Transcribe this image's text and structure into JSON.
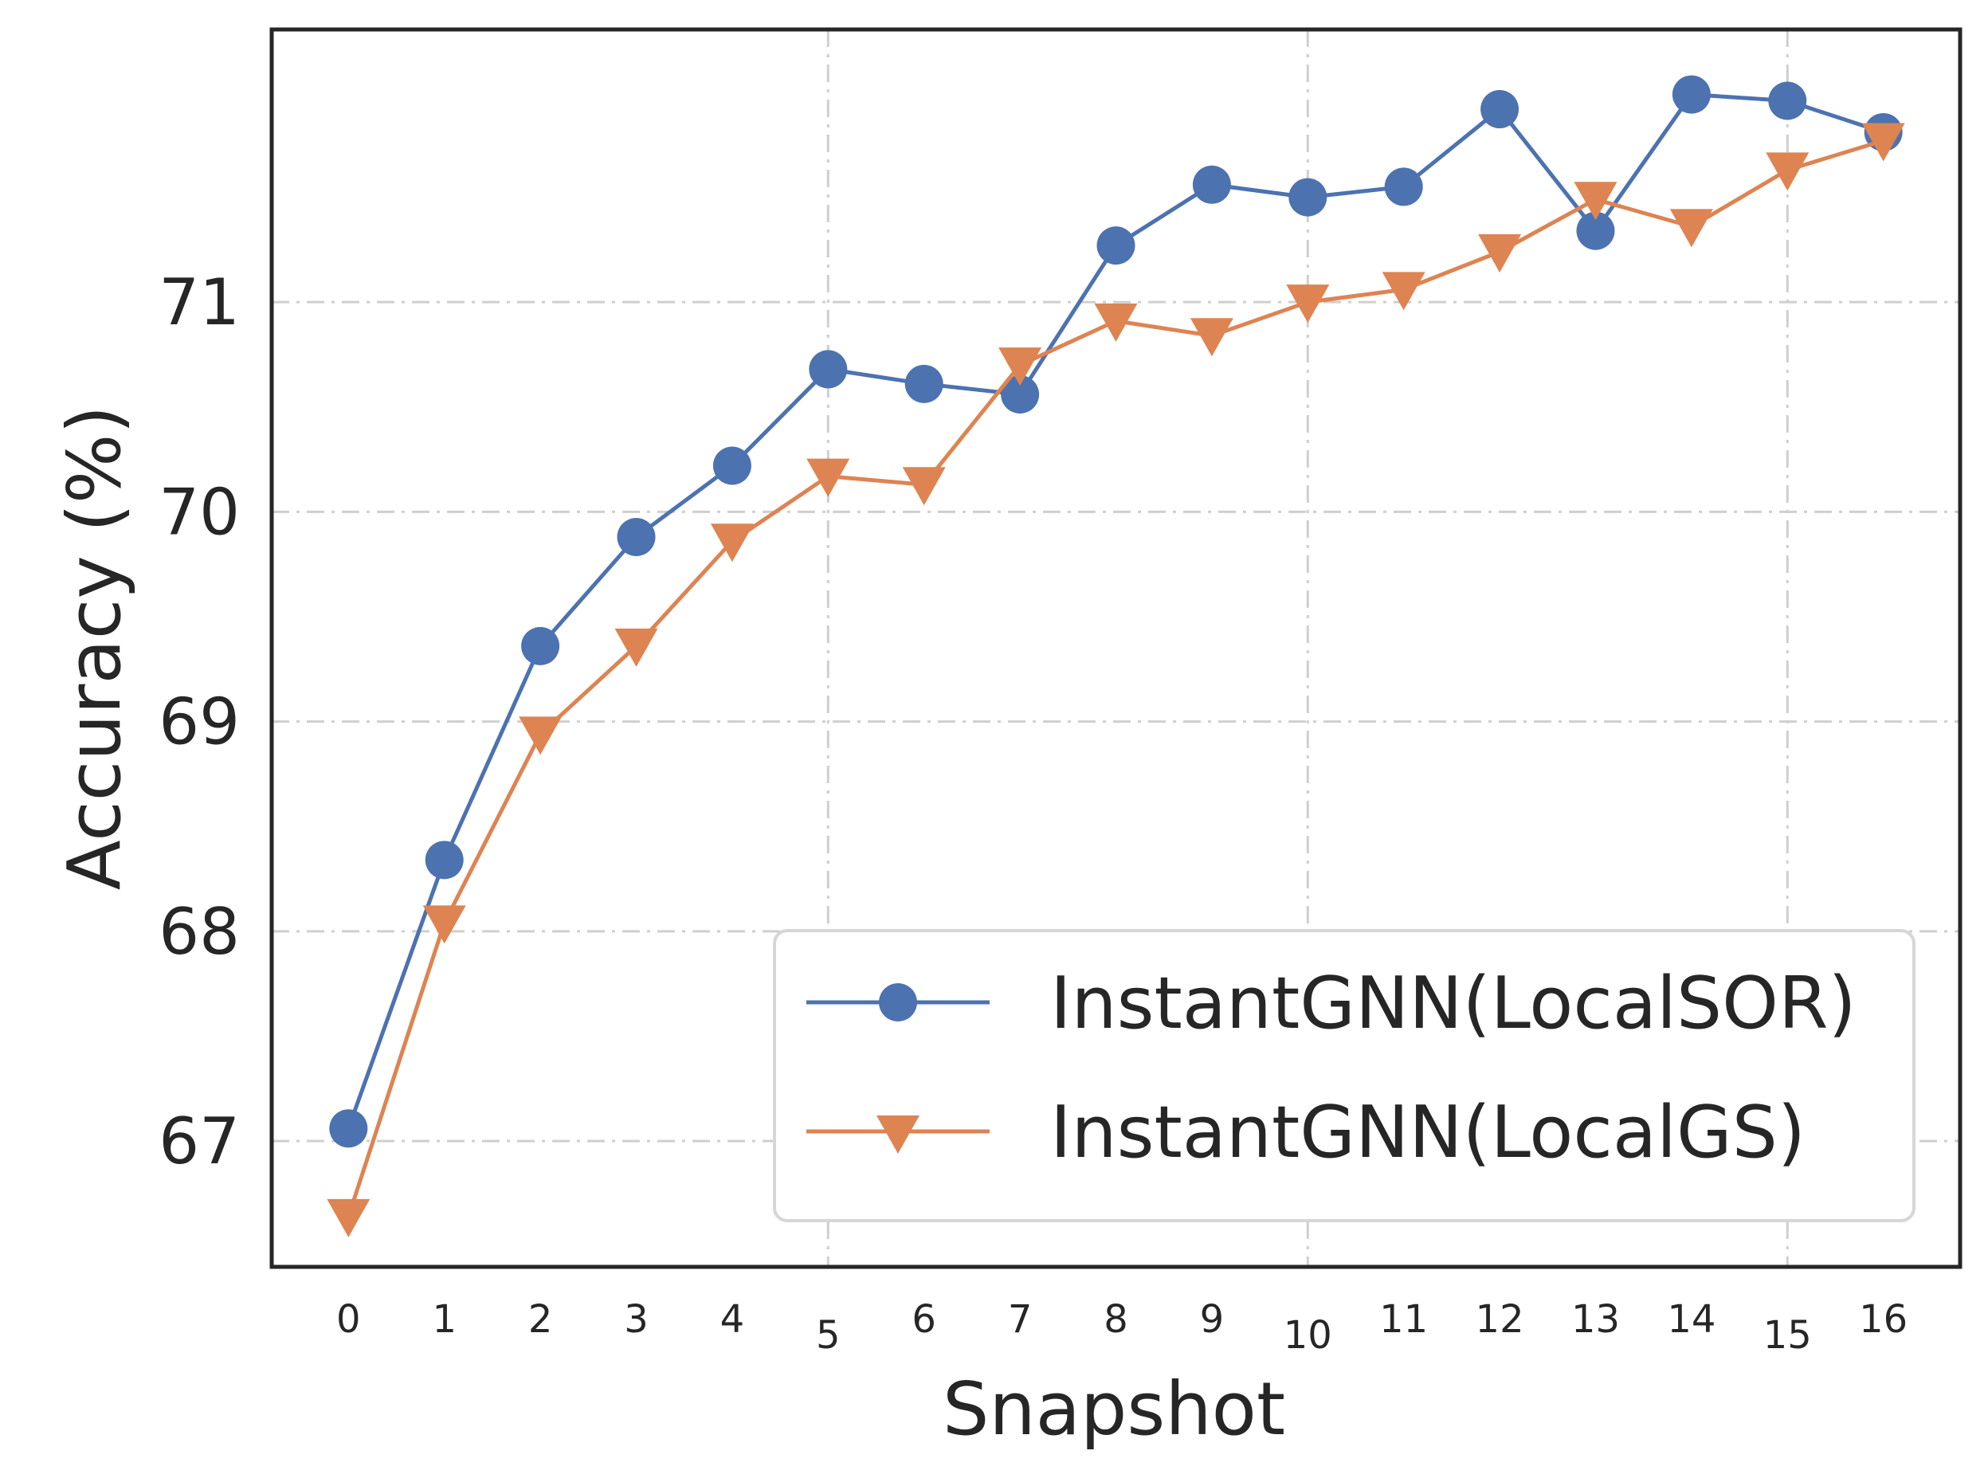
{
  "chart_data": {
    "type": "line",
    "xlabel": "Snapshot",
    "ylabel": "Accuracy (%)",
    "x": [
      0,
      1,
      2,
      3,
      4,
      5,
      6,
      7,
      8,
      9,
      10,
      11,
      12,
      13,
      14,
      15,
      16
    ],
    "xticks": [
      "0",
      "1",
      "2",
      "3",
      "4",
      "5",
      "6",
      "7",
      "8",
      "9",
      "10",
      "11",
      "12",
      "13",
      "14",
      "15",
      "16"
    ],
    "yticks": [
      "67",
      "68",
      "69",
      "70",
      "71"
    ],
    "xlim": [
      -0.8,
      16.8
    ],
    "ylim": [
      66.4,
      72.3
    ],
    "grid": true,
    "grid_x_at": [
      5,
      10,
      15
    ],
    "legend_position": "lower-right",
    "series": [
      {
        "name": "InstantGNN(LocalSOR)",
        "color": "#4c72b0",
        "marker": "circle",
        "values": [
          67.06,
          68.34,
          69.36,
          69.88,
          70.22,
          70.68,
          70.61,
          70.56,
          71.27,
          71.56,
          71.5,
          71.55,
          71.92,
          71.34,
          71.99,
          71.96,
          71.81
        ]
      },
      {
        "name": "InstantGNN(LocalGS)",
        "color": "#dd8452",
        "marker": "triangle-down",
        "values": [
          66.64,
          68.04,
          68.94,
          69.36,
          69.86,
          70.17,
          70.13,
          70.7,
          70.91,
          70.84,
          71.0,
          71.06,
          71.24,
          71.49,
          71.36,
          71.63,
          71.77
        ]
      }
    ]
  }
}
